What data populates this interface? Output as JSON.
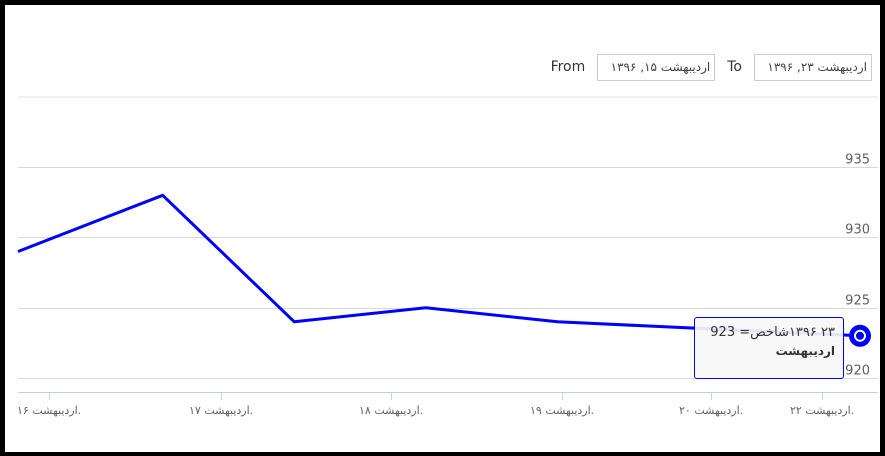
{
  "range_selector": {
    "from_label": "From",
    "from_value": "اردیبهشت ۱۵, ۱۳۹۶",
    "to_label": "To",
    "to_value": "اردیبهشت ۲۳, ۱۳۹۶"
  },
  "chart_data": {
    "type": "line",
    "title": "",
    "xlabel": "",
    "ylabel": "",
    "x_ticks": [
      "اردیبهشت ۱۶.",
      "اردیبهشت ۱۷.",
      "اردیبهشت ۱۸.",
      "اردیبهشت ۱۹.",
      "اردیبهشت ۲۰.",
      "اردیبهشت ۲۲."
    ],
    "y_ticks": [
      920,
      925,
      930,
      935
    ],
    "ylim": [
      919,
      940
    ],
    "series": [
      {
        "color": "#0000ff",
        "points": [
          {
            "x": 15.9,
            "y": 929
          },
          {
            "x": 17,
            "y": 933
          },
          {
            "x": 18,
            "y": 924
          },
          {
            "x": 19,
            "y": 925
          },
          {
            "x": 20,
            "y": 924
          },
          {
            "x": 22.3,
            "y": 923
          }
        ]
      }
    ],
    "highlight_index": 5,
    "grid": true,
    "legend": "none"
  },
  "tooltip": {
    "line1": "۲۳ ۱۳۹۶شاخص= 923",
    "line2": "اردیبهشت"
  }
}
